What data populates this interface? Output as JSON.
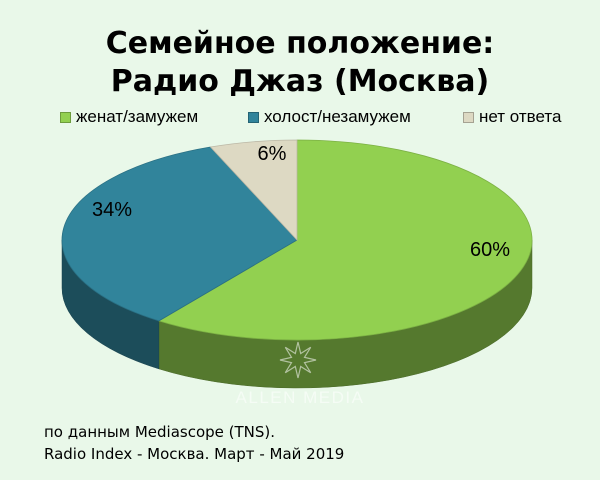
{
  "chart_data": {
    "type": "pie",
    "title_lines": [
      "Семейное положение:",
      "Радио Джаз (Москва)"
    ],
    "legend_position": "top",
    "slices": [
      {
        "label": "женат/замужем",
        "value": 60,
        "value_label": "60%",
        "color": "#92d050"
      },
      {
        "label": "холост/незамужем",
        "value": 34,
        "value_label": "34%",
        "color": "#31849b"
      },
      {
        "label": "нет ответа",
        "value": 6,
        "value_label": "6%",
        "color": "#ddd9c3"
      }
    ]
  },
  "source": {
    "line1": "по данным Mediascope (TNS).",
    "line2": "Radio Index - Москва. Март - Май 2019"
  },
  "watermark": {
    "text": "ALLEN MEDIA"
  }
}
